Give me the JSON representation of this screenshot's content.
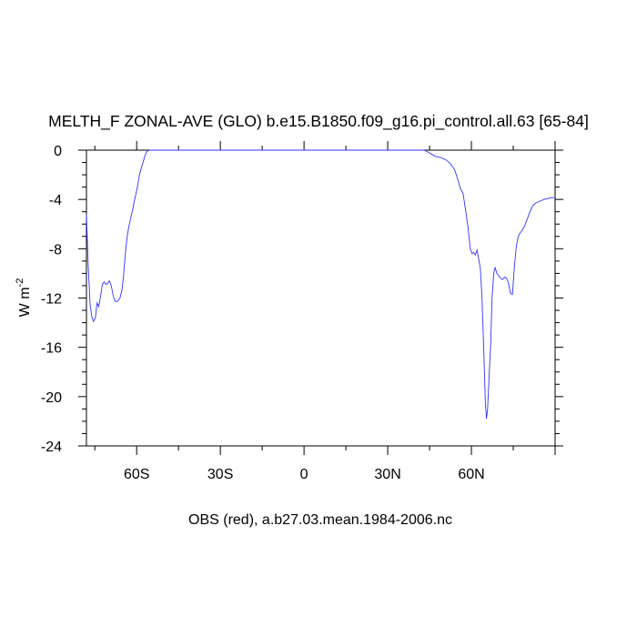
{
  "chart_data": {
    "type": "line",
    "title": "MELTH_F ZONAL-AVE (GLO) b.e15.B1850.f09_g16.pi_control.all.63 [65-84]",
    "xlabel": "OBS (red), a.b27.03.mean.1984-2006.nc",
    "ylabel": "W m",
    "ylabel_sup": "-2",
    "xlim": [
      -78,
      90
    ],
    "ylim": [
      -24,
      0
    ],
    "x_ticks": [
      {
        "value": -60,
        "label": "60S"
      },
      {
        "value": -30,
        "label": "30S"
      },
      {
        "value": 0,
        "label": "0"
      },
      {
        "value": 30,
        "label": "30N"
      },
      {
        "value": 60,
        "label": "60N"
      }
    ],
    "y_ticks": [
      {
        "value": 0,
        "label": "0"
      },
      {
        "value": -4,
        "label": "-4"
      },
      {
        "value": -8,
        "label": "-8"
      },
      {
        "value": -12,
        "label": "-12"
      },
      {
        "value": -16,
        "label": "-16"
      },
      {
        "value": -20,
        "label": "-20"
      },
      {
        "value": -24,
        "label": "-24"
      }
    ],
    "grid": false,
    "series": [
      {
        "color": "#3333ff",
        "points": [
          [
            -78,
            -5.2
          ],
          [
            -77.4,
            -9.2
          ],
          [
            -76.7,
            -12.5
          ],
          [
            -76.1,
            -13.5
          ],
          [
            -75.5,
            -13.9
          ],
          [
            -74.8,
            -13.6
          ],
          [
            -74.2,
            -12.4
          ],
          [
            -73.6,
            -12.7
          ],
          [
            -72.9,
            -11.8
          ],
          [
            -72.3,
            -10.9
          ],
          [
            -71.7,
            -10.7
          ],
          [
            -71.0,
            -10.9
          ],
          [
            -70.4,
            -10.8
          ],
          [
            -69.8,
            -10.6
          ],
          [
            -69.1,
            -11.0
          ],
          [
            -68.5,
            -11.7
          ],
          [
            -67.9,
            -12.2
          ],
          [
            -67.2,
            -12.3
          ],
          [
            -66.6,
            -12.2
          ],
          [
            -66.0,
            -12.0
          ],
          [
            -65.3,
            -11.4
          ],
          [
            -64.7,
            -10.2
          ],
          [
            -64.1,
            -8.5
          ],
          [
            -63.4,
            -7.0
          ],
          [
            -62.8,
            -6.2
          ],
          [
            -62.2,
            -5.6
          ],
          [
            -61.5,
            -4.9
          ],
          [
            -60.9,
            -4.2
          ],
          [
            -60.3,
            -3.6
          ],
          [
            -59.6,
            -2.8
          ],
          [
            -59.0,
            -2.0
          ],
          [
            -58.4,
            -1.5
          ],
          [
            -57.7,
            -1.0
          ],
          [
            -57.1,
            -0.5
          ],
          [
            -56.5,
            -0.15
          ],
          [
            -55.8,
            -0.03
          ],
          [
            -55.2,
            0
          ],
          [
            43,
            0
          ],
          [
            44,
            -0.1
          ],
          [
            45.5,
            -0.3
          ],
          [
            47,
            -0.5
          ],
          [
            49,
            -0.6
          ],
          [
            51,
            -0.8
          ],
          [
            52.5,
            -1.1
          ],
          [
            54,
            -1.6
          ],
          [
            55,
            -2.3
          ],
          [
            56,
            -3.1
          ],
          [
            57,
            -3.5
          ],
          [
            58,
            -5.0
          ],
          [
            58.8,
            -6.3
          ],
          [
            59.6,
            -8.0
          ],
          [
            60.2,
            -8.4
          ],
          [
            60.8,
            -8.3
          ],
          [
            61.4,
            -8.5
          ],
          [
            62,
            -8.1
          ],
          [
            62.6,
            -8.8
          ],
          [
            63.2,
            -9.6
          ],
          [
            63.8,
            -12.0
          ],
          [
            64.4,
            -16.0
          ],
          [
            65,
            -20.5
          ],
          [
            65.4,
            -21.8
          ],
          [
            65.8,
            -21.0
          ],
          [
            66.3,
            -18.5
          ],
          [
            66.9,
            -15.8
          ],
          [
            67.4,
            -12.0
          ],
          [
            68,
            -10.0
          ],
          [
            68.5,
            -9.5
          ],
          [
            69.1,
            -10.0
          ],
          [
            69.8,
            -10.2
          ],
          [
            70.5,
            -10.4
          ],
          [
            71.2,
            -10.5
          ],
          [
            71.9,
            -10.3
          ],
          [
            72.6,
            -10.4
          ],
          [
            73.3,
            -10.8
          ],
          [
            74.0,
            -11.6
          ],
          [
            74.7,
            -11.7
          ],
          [
            75.4,
            -9.5
          ],
          [
            76.1,
            -7.8
          ],
          [
            76.8,
            -7.0
          ],
          [
            77.5,
            -6.7
          ],
          [
            78.2,
            -6.5
          ],
          [
            79,
            -6.2
          ],
          [
            80,
            -5.6
          ],
          [
            81,
            -5.0
          ],
          [
            82,
            -4.5
          ],
          [
            83,
            -4.3
          ],
          [
            84,
            -4.2
          ],
          [
            85,
            -4.1
          ],
          [
            86,
            -4.0
          ],
          [
            87,
            -3.95
          ],
          [
            88,
            -3.9
          ],
          [
            89,
            -3.85
          ],
          [
            90,
            -3.85
          ]
        ]
      }
    ]
  }
}
